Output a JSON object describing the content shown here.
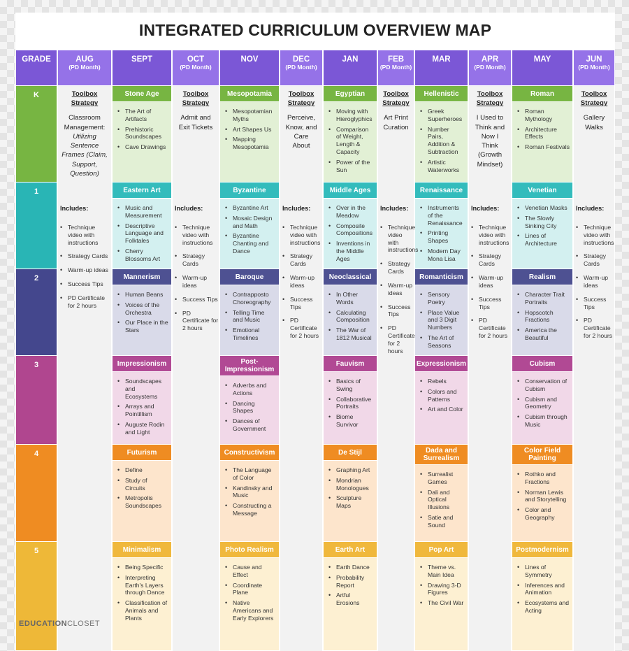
{
  "title": {
    "prefix": "INTEGRAT",
    "bold": "ED",
    "suffix": " CURRICULUM OVERVIEW MAP"
  },
  "grade_header": "GRADE",
  "logo": {
    "bold": "EDUCATION",
    "rest": "CLOSET"
  },
  "colors": {
    "header": "#7b57d6",
    "grades": {
      "K": "#77b542",
      "1": "#29b5b5",
      "2": "#44478d",
      "3": "#b0468f",
      "4": "#ef8c22",
      "5": "#eeb838"
    },
    "topic_headers": {
      "K": "#77b542",
      "1": "#33bcbc",
      "2": "#4e5192",
      "3": "#b14994",
      "4": "#ef8c22",
      "5": "#f0b83c"
    },
    "topic_bodies": {
      "K": "#e2f0d5",
      "1": "#d3f0f0",
      "2": "#d9dae9",
      "3": "#f1d8e8",
      "4": "#fde5cc",
      "5": "#fdf0d2"
    },
    "month_bg": "#f2f2f2"
  },
  "grades": [
    "K",
    "1",
    "2",
    "3",
    "4",
    "5"
  ],
  "months": [
    {
      "label": "AUG",
      "pd": "(PD Month)"
    },
    {
      "label": "SEPT"
    },
    {
      "label": "OCT",
      "pd": "(PD Month)"
    },
    {
      "label": "NOV"
    },
    {
      "label": "DEC",
      "pd": "(PD Month)"
    },
    {
      "label": "JAN"
    },
    {
      "label": "FEB",
      "pd": "(PD Month)"
    },
    {
      "label": "MAR"
    },
    {
      "label": "APR",
      "pd": "(PD Month)"
    },
    {
      "label": "MAY"
    },
    {
      "label": "JUN",
      "pd": "(PD Month)"
    }
  ],
  "topics": [
    [
      {
        "title": "Stone Age",
        "items": [
          "The Art of Artifacts",
          "Prehistoric Soundscapes",
          "Cave Drawings"
        ]
      },
      {
        "title": "Mesopotamia",
        "items": [
          "Mesopotamian Myths",
          "Art Shapes Us",
          "Mapping Mesopotamia"
        ]
      },
      {
        "title": "Egyptian",
        "items": [
          "Moving with Hieroglyphics",
          "Comparison of Weight, Length & Capacity",
          "Power of the Sun"
        ]
      },
      {
        "title": "Hellenistic",
        "items": [
          "Greek Superheroes",
          "Number Pairs, Addition & Subtraction",
          "Artistic Waterworks"
        ]
      },
      {
        "title": "Roman",
        "items": [
          "Roman Mythology",
          "Architecture Effects",
          "Roman Festivals"
        ]
      }
    ],
    [
      {
        "title": "Eastern Art",
        "items": [
          "Music and Measurement",
          "Descriptive Language and Folktales",
          "Cherry Blossoms Art"
        ]
      },
      {
        "title": "Byzantine",
        "items": [
          "Byzantine Art",
          "Mosaic Design and Math",
          "Byzantine Chanting and Dance"
        ]
      },
      {
        "title": "Middle Ages",
        "items": [
          "Over in the Meadow",
          "Composite Compositions",
          "Inventions in the Middle Ages"
        ]
      },
      {
        "title": "Renaissance",
        "items": [
          "Instruments of the Renaissance",
          "Printing Shapes",
          "Modern Day Mona Lisa"
        ]
      },
      {
        "title": "Venetian",
        "items": [
          "Venetian Masks",
          "The Slowly Sinking City",
          "Lines of Architecture"
        ]
      }
    ],
    [
      {
        "title": "Mannerism",
        "items": [
          "Human Beans",
          "Voices of the Orchestra",
          "Our Place in the Stars"
        ]
      },
      {
        "title": "Baroque",
        "items": [
          "Contrapposto Choreography",
          "Telling Time and Music",
          "Emotional Timelines"
        ]
      },
      {
        "title": "Neoclassical",
        "items": [
          "In Other Words",
          "Calculating Composition",
          "The War of 1812 Musical"
        ]
      },
      {
        "title": "Romanticism",
        "items": [
          "Sensory Poetry",
          "Place Value and 3 Digit Numbers",
          "The Art of Seasons"
        ]
      },
      {
        "title": "Realism",
        "items": [
          "Character Trait Portraits",
          "Hopscotch Fractions",
          "America the Beautiful"
        ]
      }
    ],
    [
      {
        "title": "Impressionism",
        "items": [
          "Soundscapes and Ecosystems",
          "Arrays and Pointillism",
          "Auguste Rodin and Light"
        ]
      },
      {
        "title": "Post-Impressionism",
        "items": [
          "Adverbs and Actions",
          "Dancing Shapes",
          "Dances of Government"
        ]
      },
      {
        "title": "Fauvism",
        "items": [
          "Basics of Swing",
          "Collaborative Portraits",
          "Biome Survivor"
        ]
      },
      {
        "title": "Expressionism",
        "items": [
          "Rebels",
          "Colors and Patterns",
          "Art and Color"
        ]
      },
      {
        "title": "Cubism",
        "items": [
          "Conservation of Cubism",
          "Cubism and Geometry",
          "Cubism through Music"
        ]
      }
    ],
    [
      {
        "title": "Futurism",
        "items": [
          "Define",
          "Study of Circuits",
          "Metropolis Soundscapes"
        ]
      },
      {
        "title": "Constructivism",
        "items": [
          "The Language of Color",
          "Kandinsky and Music",
          "Constructing a Message"
        ]
      },
      {
        "title": "De Stijl",
        "items": [
          "Graphing Art",
          "Mondrian Monologues",
          "Sculpture Maps"
        ]
      },
      {
        "title": "Dada and Surrealism",
        "items": [
          "Surrealist Games",
          "Dali and Optical Illusions",
          "Satie and Sound"
        ]
      },
      {
        "title": "Color Field Painting",
        "items": [
          "Rothko and Fractions",
          "Norman Lewis and Storytelling",
          "Color and Geography"
        ]
      }
    ],
    [
      {
        "title": "Minimalism",
        "items": [
          "Being Specific",
          "Interpreting Earth's Layers through Dance",
          "Classification of Animals and Plants"
        ]
      },
      {
        "title": "Photo Realism",
        "items": [
          "Cause and Effect",
          "Coordinate Plane",
          "Native Americans and Early Explorers"
        ]
      },
      {
        "title": "Earth Art",
        "items": [
          "Earth Dance",
          "Probability Report",
          "Artful Erosions"
        ]
      },
      {
        "title": "Pop Art",
        "items": [
          "Theme vs. Main Idea",
          "Drawing 3-D Figures",
          "The Civil War"
        ]
      },
      {
        "title": "Postmodernism",
        "items": [
          "Lines of Symmetry",
          "Inferences and Animation",
          "Ecosystems and Acting"
        ]
      }
    ]
  ],
  "pd": {
    "toolbox_lines": [
      "Toolbox",
      "Strategy"
    ],
    "strategies": [
      {
        "lines": [
          "Classroom",
          "Management:"
        ],
        "italic": [
          "Utilizing",
          "Sentence",
          "Frames (Claim,",
          "Support,",
          "Question)"
        ]
      },
      {
        "lines": [
          "Admit and",
          "Exit Tickets"
        ]
      },
      {
        "lines": [
          "Perceive,",
          "Know, and",
          "Care",
          "About"
        ]
      },
      {
        "lines": [
          "Art Print",
          "Curation"
        ]
      },
      {
        "lines": [
          "I Used to",
          "Think and",
          "Now I",
          "Think",
          "(Growth",
          "Mindset)"
        ]
      },
      {
        "lines": [
          "Gallery",
          "Walks"
        ]
      }
    ],
    "includes_label": "Includes:",
    "includes": [
      "Technique video with instructions",
      "Strategy Cards",
      "Warm-up ideas",
      "Success Tips",
      "PD Certificate for 2 hours"
    ]
  }
}
